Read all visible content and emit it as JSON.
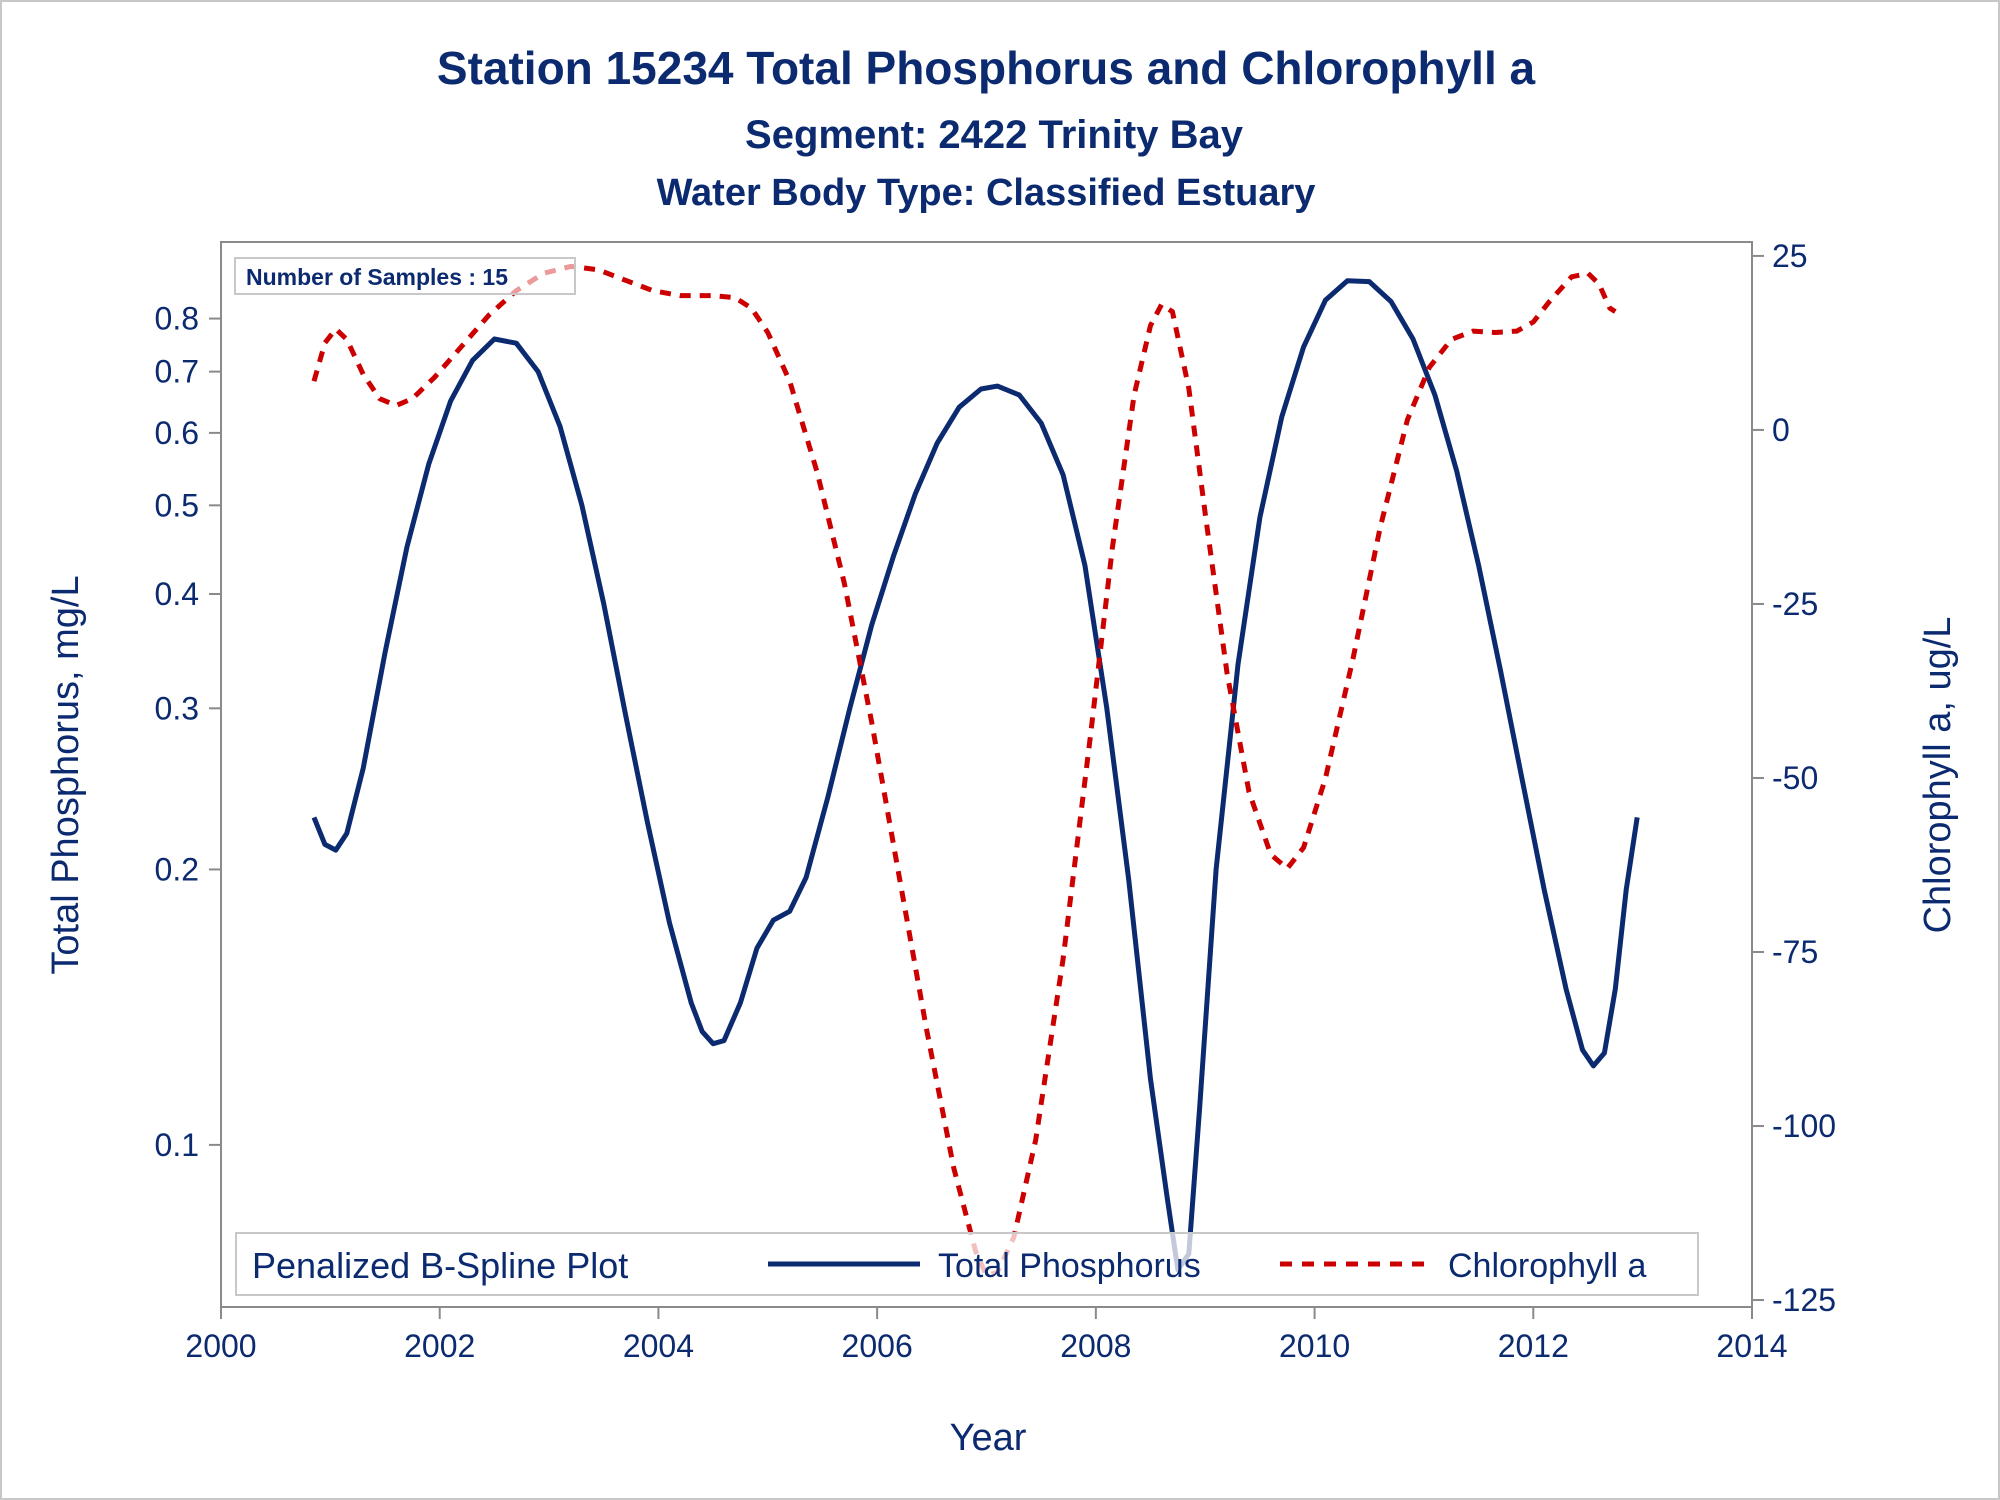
{
  "titles": {
    "line1": "Station 15234  Total Phosphorus and Chlorophyll a",
    "line2": "Segment: 2422  Trinity Bay",
    "line3": "Water Body Type: Classified Estuary"
  },
  "inset": {
    "text": "Number of Samples : 15"
  },
  "legend": {
    "title": "Penalized B-Spline Plot",
    "items": [
      {
        "label": "Total Phosphorus"
      },
      {
        "label": "Chlorophyll a"
      }
    ]
  },
  "colors": {
    "text": "#0b2a6f",
    "phosphorus": "#0b2a6f",
    "chlorophyll": "#cc0000",
    "frame": "#8a8a8a",
    "border": "#c8c8c8"
  },
  "chart_data": {
    "type": "line",
    "xlabel": "Year",
    "ylabel_left": "Total Phosphorus, mg/L",
    "ylabel_right": "Chlorophyll a, ug/L",
    "x_axis": {
      "range": [
        2000,
        2014
      ],
      "ticks": [
        2000,
        2002,
        2004,
        2006,
        2008,
        2010,
        2012,
        2014
      ]
    },
    "y_left_axis": {
      "scale": "log",
      "range": [
        0.0665,
        0.97
      ],
      "ticks": [
        0.1,
        0.2,
        0.3,
        0.4,
        0.5,
        0.6,
        0.7,
        0.8
      ],
      "tick_labels": [
        "0.1",
        "0.2",
        "0.3",
        "0.4",
        "0.5",
        "0.6",
        "0.7",
        "0.8"
      ]
    },
    "y_right_axis": {
      "scale": "linear",
      "range": [
        -126,
        27
      ],
      "ticks": [
        -125,
        -100,
        -75,
        -50,
        -25,
        0,
        25
      ],
      "tick_labels": [
        "-125",
        "-100",
        "-75",
        "-50",
        "-25",
        "0",
        "25"
      ]
    },
    "grid": false,
    "legend_position": "bottom-inside",
    "series": [
      {
        "name": "Total Phosphorus",
        "axis": "left",
        "style": "solid",
        "points": [
          [
            2000.85,
            0.228
          ],
          [
            2000.95,
            0.213
          ],
          [
            2001.05,
            0.21
          ],
          [
            2001.15,
            0.219
          ],
          [
            2001.3,
            0.258
          ],
          [
            2001.5,
            0.345
          ],
          [
            2001.7,
            0.45
          ],
          [
            2001.9,
            0.555
          ],
          [
            2002.1,
            0.65
          ],
          [
            2002.3,
            0.72
          ],
          [
            2002.5,
            0.76
          ],
          [
            2002.7,
            0.752
          ],
          [
            2002.9,
            0.7
          ],
          [
            2003.1,
            0.61
          ],
          [
            2003.3,
            0.5
          ],
          [
            2003.5,
            0.39
          ],
          [
            2003.7,
            0.295
          ],
          [
            2003.9,
            0.225
          ],
          [
            2004.1,
            0.175
          ],
          [
            2004.3,
            0.143
          ],
          [
            2004.4,
            0.133
          ],
          [
            2004.5,
            0.129
          ],
          [
            2004.6,
            0.13
          ],
          [
            2004.75,
            0.143
          ],
          [
            2004.9,
            0.164
          ],
          [
            2005.05,
            0.176
          ],
          [
            2005.2,
            0.18
          ],
          [
            2005.35,
            0.196
          ],
          [
            2005.55,
            0.24
          ],
          [
            2005.75,
            0.3
          ],
          [
            2005.95,
            0.37
          ],
          [
            2006.15,
            0.44
          ],
          [
            2006.35,
            0.515
          ],
          [
            2006.55,
            0.585
          ],
          [
            2006.75,
            0.64
          ],
          [
            2006.95,
            0.67
          ],
          [
            2007.1,
            0.675
          ],
          [
            2007.3,
            0.66
          ],
          [
            2007.5,
            0.615
          ],
          [
            2007.7,
            0.54
          ],
          [
            2007.9,
            0.43
          ],
          [
            2008.1,
            0.3
          ],
          [
            2008.3,
            0.195
          ],
          [
            2008.5,
            0.118
          ],
          [
            2008.65,
            0.088
          ],
          [
            2008.75,
            0.073
          ],
          [
            2008.85,
            0.076
          ],
          [
            2008.95,
            0.11
          ],
          [
            2009.1,
            0.2
          ],
          [
            2009.3,
            0.335
          ],
          [
            2009.5,
            0.485
          ],
          [
            2009.7,
            0.625
          ],
          [
            2009.9,
            0.745
          ],
          [
            2010.1,
            0.838
          ],
          [
            2010.3,
            0.88
          ],
          [
            2010.5,
            0.878
          ],
          [
            2010.7,
            0.835
          ],
          [
            2010.9,
            0.76
          ],
          [
            2011.1,
            0.66
          ],
          [
            2011.3,
            0.545
          ],
          [
            2011.5,
            0.43
          ],
          [
            2011.7,
            0.33
          ],
          [
            2011.9,
            0.25
          ],
          [
            2012.1,
            0.19
          ],
          [
            2012.3,
            0.148
          ],
          [
            2012.45,
            0.127
          ],
          [
            2012.55,
            0.122
          ],
          [
            2012.65,
            0.126
          ],
          [
            2012.75,
            0.148
          ],
          [
            2012.85,
            0.19
          ],
          [
            2012.95,
            0.228
          ]
        ]
      },
      {
        "name": "Chlorophyll a",
        "axis": "right",
        "style": "dashed",
        "points": [
          [
            2000.85,
            7
          ],
          [
            2000.95,
            12.5
          ],
          [
            2001.05,
            14.5
          ],
          [
            2001.15,
            13
          ],
          [
            2001.3,
            8
          ],
          [
            2001.45,
            4.5
          ],
          [
            2001.6,
            3.5
          ],
          [
            2001.75,
            4.5
          ],
          [
            2001.95,
            7.5
          ],
          [
            2002.2,
            12
          ],
          [
            2002.45,
            16.5
          ],
          [
            2002.7,
            20
          ],
          [
            2002.95,
            22.5
          ],
          [
            2003.2,
            23.5
          ],
          [
            2003.45,
            23
          ],
          [
            2003.7,
            21.5
          ],
          [
            2003.95,
            20
          ],
          [
            2004.2,
            19.3
          ],
          [
            2004.5,
            19.3
          ],
          [
            2004.7,
            19
          ],
          [
            2004.85,
            17.5
          ],
          [
            2005.0,
            14
          ],
          [
            2005.2,
            7
          ],
          [
            2005.45,
            -6
          ],
          [
            2005.7,
            -22
          ],
          [
            2005.95,
            -42
          ],
          [
            2006.2,
            -64
          ],
          [
            2006.45,
            -86
          ],
          [
            2006.7,
            -106
          ],
          [
            2006.9,
            -118
          ],
          [
            2007.0,
            -121.5
          ],
          [
            2007.1,
            -121
          ],
          [
            2007.25,
            -116
          ],
          [
            2007.45,
            -102
          ],
          [
            2007.7,
            -76
          ],
          [
            2007.95,
            -44
          ],
          [
            2008.15,
            -17
          ],
          [
            2008.35,
            5
          ],
          [
            2008.5,
            15
          ],
          [
            2008.6,
            18
          ],
          [
            2008.7,
            17
          ],
          [
            2008.85,
            6
          ],
          [
            2009.0,
            -12
          ],
          [
            2009.2,
            -35
          ],
          [
            2009.4,
            -52
          ],
          [
            2009.6,
            -61
          ],
          [
            2009.75,
            -63
          ],
          [
            2009.9,
            -60
          ],
          [
            2010.1,
            -50
          ],
          [
            2010.35,
            -33
          ],
          [
            2010.6,
            -14
          ],
          [
            2010.85,
            1.5
          ],
          [
            2011.05,
            9
          ],
          [
            2011.25,
            13
          ],
          [
            2011.45,
            14.2
          ],
          [
            2011.65,
            14
          ],
          [
            2011.85,
            14.2
          ],
          [
            2012.0,
            15.5
          ],
          [
            2012.15,
            18.5
          ],
          [
            2012.35,
            22
          ],
          [
            2012.5,
            22.5
          ],
          [
            2012.6,
            21
          ],
          [
            2012.7,
            17.5
          ],
          [
            2012.75,
            17
          ]
        ]
      }
    ]
  }
}
